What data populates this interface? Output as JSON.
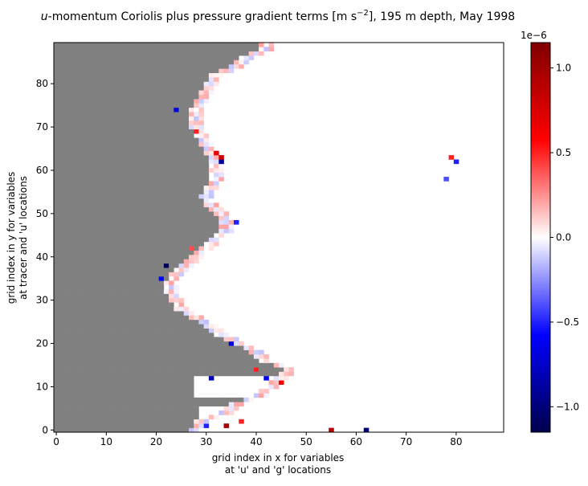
{
  "figure": {
    "title_prefix": "u",
    "title_rest": "-momentum Coriolis plus pressure gradient terms [m s",
    "title_exp": "−2",
    "title_suffix": "], 195 m depth, May 1998"
  },
  "chart_data": {
    "type": "heatmap",
    "title": "u-momentum Coriolis plus pressure gradient terms [m s^-2], 195 m depth, May 1998",
    "xlabel_line1": "grid index in x for variables",
    "xlabel_line2": "at 'u' and 'g' locations",
    "ylabel_line1": "grid index in y for variables",
    "ylabel_line2": "at tracer and 'u' locations",
    "xlim": [
      -0.5,
      89.5
    ],
    "ylim": [
      -0.5,
      89.5
    ],
    "xticks": [
      "0",
      "10",
      "20",
      "30",
      "40",
      "50",
      "60",
      "70",
      "80"
    ],
    "yticks": [
      "0",
      "10",
      "20",
      "30",
      "40",
      "50",
      "60",
      "70",
      "80"
    ],
    "grid": false,
    "colormap": "seismic",
    "land_color": "#808080",
    "colorbar": {
      "range": [
        -1.15e-06,
        1.15e-06
      ],
      "exponent_label": "1e−6",
      "ticks": [
        "−1.0",
        "−0.5",
        "0.0",
        "0.5",
        "1.0"
      ]
    },
    "land_mask_description": "grey land occupies the western part; coastline boundary x by row",
    "coastline_west_boundary": [
      [
        0,
        27
      ],
      [
        2,
        28
      ],
      [
        4,
        33
      ],
      [
        6,
        35
      ],
      [
        8,
        40
      ],
      [
        10,
        42
      ],
      [
        12,
        44
      ],
      [
        14,
        46
      ],
      [
        16,
        41
      ],
      [
        18,
        39
      ],
      [
        20,
        36
      ],
      [
        22,
        32
      ],
      [
        24,
        30
      ],
      [
        26,
        27
      ],
      [
        28,
        24
      ],
      [
        30,
        23
      ],
      [
        32,
        22
      ],
      [
        34,
        22
      ],
      [
        36,
        23
      ],
      [
        38,
        25
      ],
      [
        40,
        27
      ],
      [
        42,
        29
      ],
      [
        44,
        31
      ],
      [
        46,
        33
      ],
      [
        48,
        33
      ],
      [
        50,
        32
      ],
      [
        52,
        30
      ],
      [
        54,
        29
      ],
      [
        56,
        30
      ],
      [
        58,
        31
      ],
      [
        60,
        31
      ],
      [
        62,
        31
      ],
      [
        64,
        30
      ],
      [
        66,
        29
      ],
      [
        68,
        28
      ],
      [
        70,
        27
      ],
      [
        72,
        27
      ],
      [
        74,
        27
      ],
      [
        76,
        28
      ],
      [
        78,
        29
      ],
      [
        80,
        30
      ],
      [
        82,
        31
      ],
      [
        84,
        35
      ],
      [
        86,
        37
      ],
      [
        88,
        41
      ],
      [
        89,
        41
      ]
    ],
    "inland_channels": [
      {
        "y_from": 2,
        "y_to": 5,
        "x_from": 29,
        "x_to": 55
      },
      {
        "y_from": 8,
        "y_to": 12,
        "x_from": 28,
        "x_to": 52
      }
    ],
    "notable_values": [
      {
        "x": 22,
        "y": 38,
        "v": -1.1e-06
      },
      {
        "x": 33,
        "y": 62,
        "v": -9e-07
      },
      {
        "x": 33,
        "y": 63,
        "v": 8e-07
      },
      {
        "x": 62,
        "y": 0,
        "v": -1e-06
      },
      {
        "x": 55,
        "y": 0,
        "v": 9e-07
      },
      {
        "x": 34,
        "y": 1,
        "v": 1e-06
      },
      {
        "x": 31,
        "y": 12,
        "v": -8e-07
      },
      {
        "x": 35,
        "y": 20,
        "v": -7e-07
      },
      {
        "x": 42,
        "y": 12,
        "v": -6e-07
      },
      {
        "x": 45,
        "y": 11,
        "v": 6e-07
      },
      {
        "x": 24,
        "y": 74,
        "v": -7e-07
      },
      {
        "x": 28,
        "y": 69,
        "v": 5e-07
      },
      {
        "x": 32,
        "y": 64,
        "v": 7e-07
      },
      {
        "x": 80,
        "y": 62,
        "v": -5e-07
      },
      {
        "x": 79,
        "y": 63,
        "v": 5e-07
      },
      {
        "x": 78,
        "y": 58,
        "v": -4e-07
      },
      {
        "x": 21,
        "y": 35,
        "v": -6e-07
      },
      {
        "x": 30,
        "y": 1,
        "v": -5e-07
      },
      {
        "x": 37,
        "y": 2,
        "v": 5e-07
      },
      {
        "x": 40,
        "y": 14,
        "v": 5e-07
      },
      {
        "x": 36,
        "y": 48,
        "v": -5e-07
      },
      {
        "x": 27,
        "y": 42,
        "v": 4e-07
      }
    ]
  }
}
